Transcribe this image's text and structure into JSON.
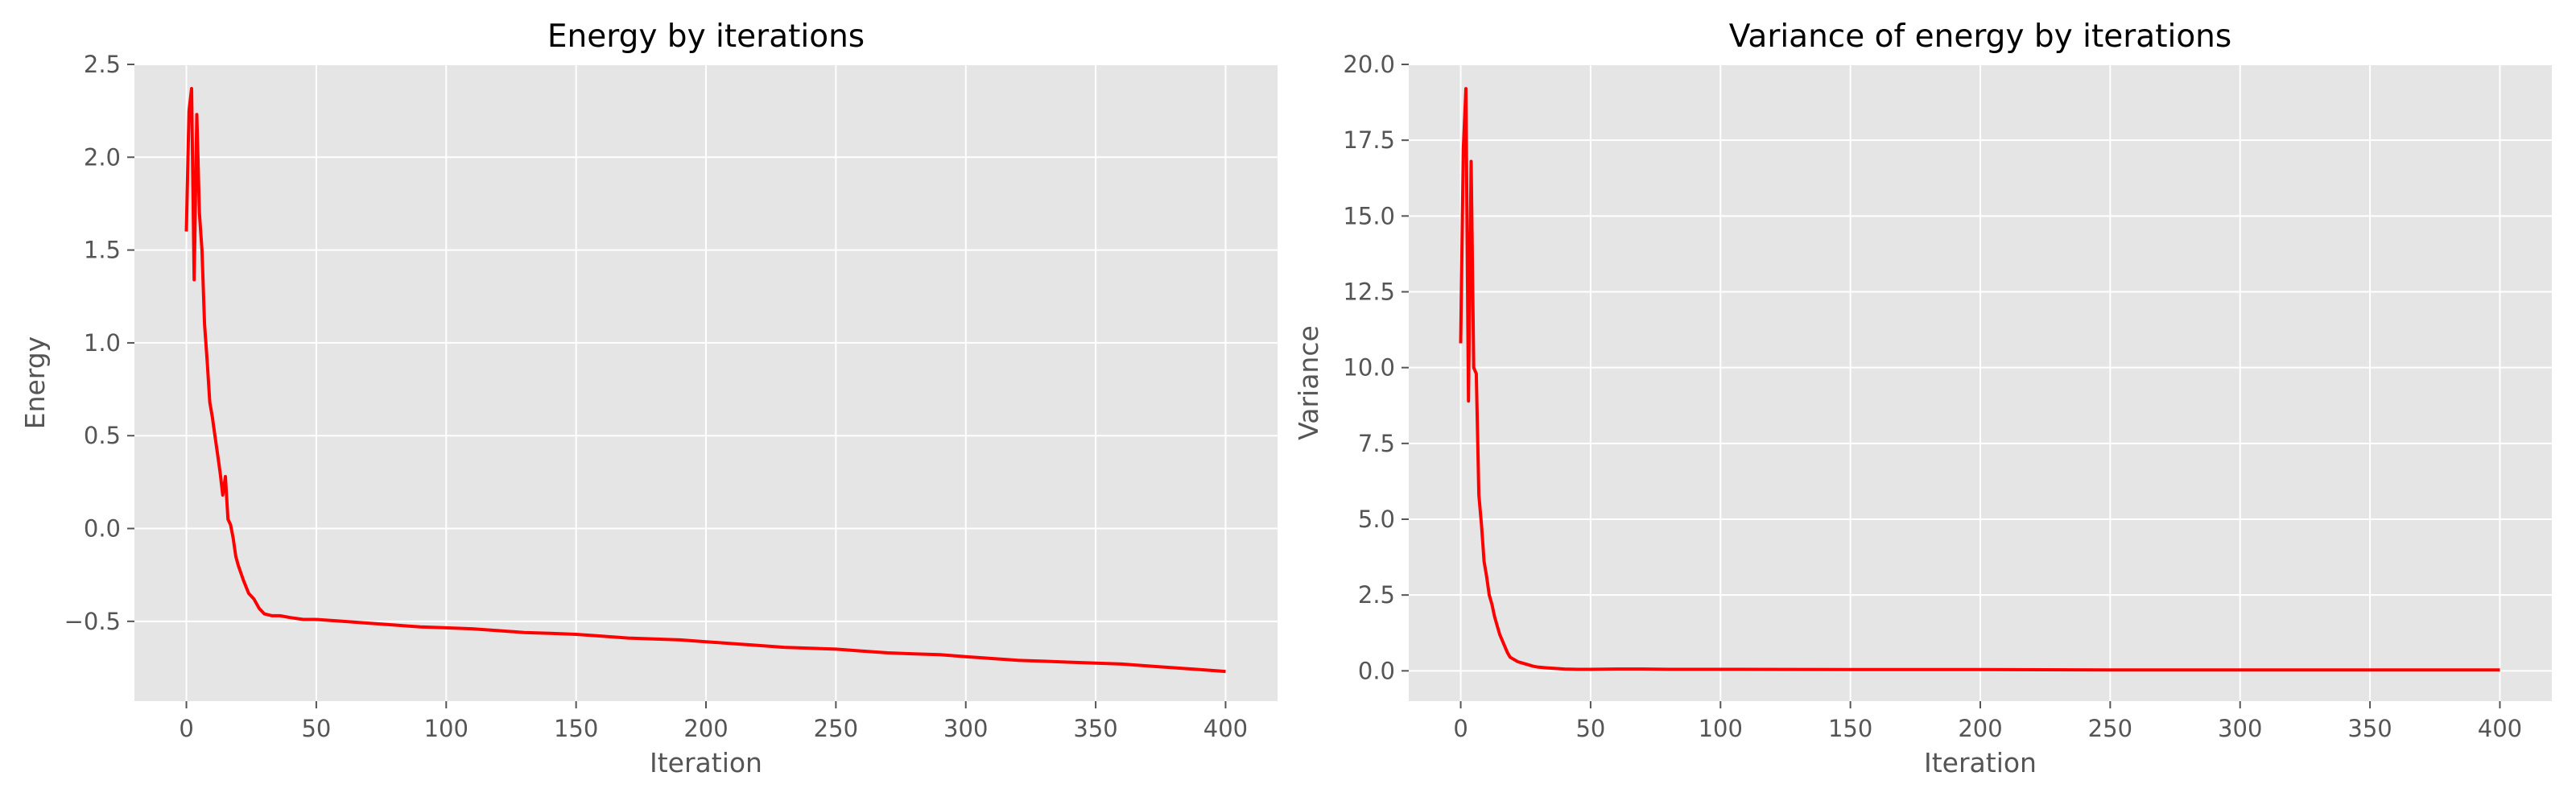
{
  "chart_data": [
    {
      "type": "line",
      "title": "Energy by iterations",
      "xlabel": "Iteration",
      "ylabel": "Energy",
      "xlim": [
        -20,
        420
      ],
      "ylim": [
        -0.93,
        2.5
      ],
      "xticks": [
        0,
        50,
        100,
        150,
        200,
        250,
        300,
        350,
        400
      ],
      "yticks": [
        -0.5,
        0.0,
        0.5,
        1.0,
        1.5,
        2.0,
        2.5
      ],
      "xtick_labels": [
        "0",
        "50",
        "100",
        "150",
        "200",
        "250",
        "300",
        "350",
        "400"
      ],
      "ytick_labels": [
        "−0.5",
        "0.0",
        "0.5",
        "1.0",
        "1.5",
        "2.0",
        "2.5"
      ],
      "grid": true,
      "line_color": "#ff0000",
      "series": [
        {
          "x": [
            0,
            1,
            2,
            3,
            4,
            5,
            6,
            7,
            8,
            9,
            10,
            11,
            12,
            13,
            14,
            15,
            16,
            17,
            18,
            19,
            20,
            22,
            24,
            26,
            28,
            30,
            33,
            36,
            40,
            45,
            50,
            60,
            70,
            80,
            90,
            100,
            110,
            120,
            130,
            140,
            150,
            160,
            170,
            180,
            190,
            200,
            210,
            220,
            230,
            240,
            250,
            260,
            270,
            280,
            290,
            300,
            310,
            320,
            330,
            340,
            350,
            360,
            370,
            380,
            390,
            400
          ],
          "y": [
            1.6,
            2.25,
            2.37,
            1.34,
            2.23,
            1.7,
            1.5,
            1.1,
            0.9,
            0.68,
            0.6,
            0.5,
            0.4,
            0.3,
            0.18,
            0.28,
            0.05,
            0.02,
            -0.05,
            -0.15,
            -0.2,
            -0.28,
            -0.35,
            -0.38,
            -0.43,
            -0.46,
            -0.47,
            -0.47,
            -0.48,
            -0.49,
            -0.49,
            -0.5,
            -0.51,
            -0.52,
            -0.53,
            -0.535,
            -0.54,
            -0.55,
            -0.56,
            -0.565,
            -0.57,
            -0.58,
            -0.59,
            -0.595,
            -0.6,
            -0.61,
            -0.62,
            -0.63,
            -0.64,
            -0.645,
            -0.65,
            -0.66,
            -0.67,
            -0.675,
            -0.68,
            -0.69,
            -0.7,
            -0.71,
            -0.715,
            -0.72,
            -0.725,
            -0.73,
            -0.74,
            -0.75,
            -0.76,
            -0.77
          ]
        }
      ]
    },
    {
      "type": "line",
      "title": "Variance of energy by iterations",
      "xlabel": "Iteration",
      "ylabel": "Variance",
      "xlim": [
        -20,
        420
      ],
      "ylim": [
        -1.0,
        20.0
      ],
      "xticks": [
        0,
        50,
        100,
        150,
        200,
        250,
        300,
        350,
        400
      ],
      "yticks": [
        0.0,
        2.5,
        5.0,
        7.5,
        10.0,
        12.5,
        15.0,
        17.5,
        20.0
      ],
      "xtick_labels": [
        "0",
        "50",
        "100",
        "150",
        "200",
        "250",
        "300",
        "350",
        "400"
      ],
      "ytick_labels": [
        "0.0",
        "2.5",
        "5.0",
        "7.5",
        "10.0",
        "12.5",
        "15.0",
        "17.5",
        "20.0"
      ],
      "grid": true,
      "line_color": "#ff0000",
      "series": [
        {
          "x": [
            0,
            1,
            2,
            3,
            4,
            5,
            6,
            7,
            8,
            9,
            10,
            11,
            12,
            13,
            14,
            15,
            16,
            17,
            18,
            19,
            20,
            22,
            24,
            26,
            28,
            30,
            33,
            36,
            40,
            45,
            50,
            60,
            70,
            80,
            90,
            100,
            150,
            200,
            250,
            300,
            350,
            400
          ],
          "y": [
            10.8,
            17.2,
            19.2,
            8.9,
            16.8,
            10.0,
            9.8,
            5.8,
            4.8,
            3.6,
            3.1,
            2.5,
            2.2,
            1.8,
            1.5,
            1.2,
            1.0,
            0.8,
            0.6,
            0.45,
            0.4,
            0.3,
            0.25,
            0.2,
            0.15,
            0.12,
            0.1,
            0.08,
            0.06,
            0.05,
            0.05,
            0.06,
            0.06,
            0.05,
            0.05,
            0.05,
            0.04,
            0.04,
            0.03,
            0.03,
            0.03,
            0.03
          ]
        }
      ]
    }
  ]
}
